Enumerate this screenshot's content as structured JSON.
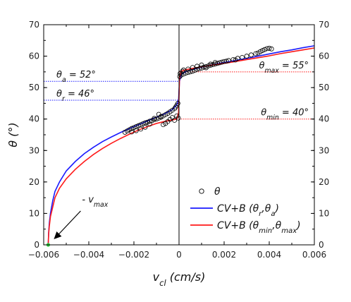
{
  "chart_data": {
    "type": "scatter",
    "xlabel": "v",
    "xlabel_sub": "cl",
    "xlabel_unit": "(cm/s)",
    "ylabel": "θ (°)",
    "xlim": [
      -0.006,
      0.006
    ],
    "ylim": [
      0,
      70
    ],
    "x_ticks": [
      -0.006,
      -0.004,
      -0.002,
      0,
      0.002,
      0.004,
      0.006
    ],
    "x_tick_labels": [
      "−0.006",
      "−0.004",
      "−0.002",
      "0",
      "0.002",
      "0.004",
      "0.006"
    ],
    "y_ticks": [
      0,
      10,
      20,
      30,
      40,
      50,
      60,
      70
    ],
    "y_tick_labels": [
      "0",
      "10",
      "20",
      "30",
      "40",
      "50",
      "60",
      "70"
    ],
    "colors": {
      "blue": "#1a1aff",
      "red": "#ff1a1a",
      "marker": "#000000",
      "vmax_marker": "#2ecc40"
    },
    "reference_lines": [
      {
        "label_main": "θ",
        "label_sub": "a",
        "label_tail": " = 52°",
        "y": 52,
        "color": "#1a1aff",
        "side": "left"
      },
      {
        "label_main": "θ",
        "label_sub": "r",
        "label_tail": " = 46°",
        "y": 46,
        "color": "#1a1aff",
        "side": "left"
      },
      {
        "label_main": "θ",
        "label_sub": "max",
        "label_tail": " = 55°",
        "y": 55,
        "color": "#ff1a1a",
        "side": "right"
      },
      {
        "label_main": "θ",
        "label_sub": "min",
        "label_tail": " = 40°",
        "y": 40,
        "color": "#ff1a1a",
        "side": "right"
      }
    ],
    "annotation": {
      "prefix": "- v",
      "sub": "max",
      "x": -0.0058,
      "y": 0
    },
    "legend": [
      {
        "kind": "marker",
        "main": "θ"
      },
      {
        "kind": "line",
        "color": "#1a1aff",
        "main": "CV+B (θ",
        "sub1": "r",
        "mid": ",θ",
        "sub2": "a",
        "tail": ")"
      },
      {
        "kind": "line",
        "color": "#ff1a1a",
        "main": "CV+B (θ",
        "sub1": "min",
        "mid": ",θ",
        "sub2": "max",
        "tail": ")"
      }
    ],
    "series": [
      {
        "name": "CV+B (θr,θa)",
        "type": "line",
        "color": "#1a1aff",
        "x": [
          -0.0058,
          -0.00578,
          -0.00575,
          -0.0057,
          -0.0056,
          -0.0055,
          -0.0053,
          -0.005,
          -0.0046,
          -0.0042,
          -0.0038,
          -0.0034,
          -0.003,
          -0.0026,
          -0.0022,
          -0.0018,
          -0.0014,
          -0.001,
          -0.0006,
          -0.0003,
          -0.0001,
          -2e-05,
          0,
          2e-05,
          0.0001,
          0.0003,
          0.0006,
          0.001,
          0.0015,
          0.002,
          0.0025,
          0.003,
          0.0035,
          0.004,
          0.0045,
          0.005,
          0.0055,
          0.006
        ],
        "y": [
          0,
          4,
          7,
          10,
          14,
          17,
          20,
          23.5,
          26.5,
          29,
          31,
          32.8,
          34.3,
          35.7,
          37,
          38.2,
          39.4,
          40.6,
          41.8,
          43,
          44.5,
          46,
          49,
          52,
          54.2,
          55.1,
          55.8,
          56.5,
          57.3,
          58,
          58.6,
          59.3,
          60,
          60.7,
          61.4,
          62,
          62.7,
          63.3
        ]
      },
      {
        "name": "CV+B (θmin,θmax)",
        "type": "line",
        "color": "#ff1a1a",
        "x": [
          -0.0058,
          -0.00578,
          -0.00575,
          -0.0057,
          -0.0056,
          -0.0055,
          -0.0053,
          -0.005,
          -0.0046,
          -0.0042,
          -0.0038,
          -0.0034,
          -0.003,
          -0.0026,
          -0.0022,
          -0.0018,
          -0.0014,
          -0.001,
          -0.0006,
          -0.0003,
          -0.0001,
          -2e-05,
          0,
          2e-05,
          0.0001,
          0.0003,
          0.0006,
          0.001,
          0.0015,
          0.002,
          0.0025,
          0.003,
          0.0035,
          0.004,
          0.0045,
          0.005,
          0.0055,
          0.006
        ],
        "y": [
          0,
          3.5,
          6,
          9,
          12,
          15,
          18,
          21,
          24,
          26.5,
          28.7,
          30.6,
          32.3,
          33.8,
          35.2,
          36.5,
          37.6,
          38.6,
          39.3,
          39.7,
          40,
          42,
          47.5,
          53,
          55.2,
          55.7,
          56.1,
          56.6,
          57.2,
          57.7,
          58.3,
          58.9,
          59.5,
          60.1,
          60.8,
          61.4,
          62,
          62.6
        ]
      },
      {
        "name": "θ",
        "type": "scatter",
        "x": [
          -0.0024,
          -0.0023,
          -0.0022,
          -0.0021,
          -0.002,
          -0.0019,
          -0.0018,
          -0.0017,
          -0.0016,
          -0.0015,
          -0.0014,
          -0.0013,
          -0.0012,
          -0.0011,
          -0.001,
          -0.0009,
          -0.0008,
          -0.0007,
          -0.0006,
          -0.0005,
          -0.0004,
          -0.0003,
          -0.0002,
          -0.00015,
          -0.0001,
          -5e-05,
          -0.0003,
          -0.0004,
          -0.0005,
          -0.0006,
          -0.0007,
          -0.0008,
          -0.0009,
          -0.0011,
          -0.0013,
          -0.0015,
          -0.0017,
          -0.0019,
          -0.0021,
          -0.0002,
          -0.0001,
          -3e-05,
          3e-05,
          0.0001,
          0.0002,
          0.0003,
          0.0004,
          0.0005,
          0.0006,
          0.0007,
          0.0008,
          0.0009,
          0.001,
          0.0011,
          0.0012,
          0.0013,
          0.0014,
          0.0015,
          0.0016,
          0.0017,
          0.0018,
          0.0019,
          0.002,
          0.0021,
          0.0022,
          0.0024,
          0.0026,
          0.0028,
          0.003,
          0.0032,
          0.0034,
          0.0036,
          0.0037,
          0.0038,
          0.0039,
          0.004,
          0.0041,
          0.0002,
          0.0004,
          0.0006,
          0.0008,
          0.001,
          0.0012,
          0.0014,
          0.0016,
          0.0025,
          0.0035,
          5e-05,
          0.00015
        ],
        "y": [
          35.8,
          36.2,
          36.6,
          37,
          37.3,
          37.6,
          37.9,
          38.2,
          38.5,
          38.8,
          39,
          39.3,
          39.5,
          39.8,
          40,
          40.3,
          40.6,
          41,
          41.4,
          41.8,
          42.3,
          42.8,
          43.3,
          43.8,
          44.4,
          45,
          40.5,
          39.9,
          39.2,
          38.6,
          38.2,
          40.8,
          41.5,
          40.2,
          38.4,
          37.4,
          36.8,
          36.3,
          35.9,
          39.6,
          41,
          40.3,
          53.5,
          54,
          54.3,
          54.6,
          54.8,
          55,
          55.2,
          55.5,
          55.8,
          56,
          56.2,
          56.5,
          56.7,
          56.9,
          57.1,
          57.3,
          57.5,
          57.7,
          57.9,
          58.1,
          58.3,
          58.4,
          58.6,
          58.9,
          59.3,
          59.6,
          60,
          60.4,
          60.8,
          61.4,
          61.8,
          62.1,
          62.4,
          62.5,
          62.3,
          55.6,
          55.9,
          56.4,
          56.8,
          57.2,
          56.3,
          57.5,
          58,
          58.8,
          61,
          54.5,
          55.2
        ]
      }
    ],
    "vmax_point": {
      "x": -0.0058,
      "y": 0
    }
  }
}
